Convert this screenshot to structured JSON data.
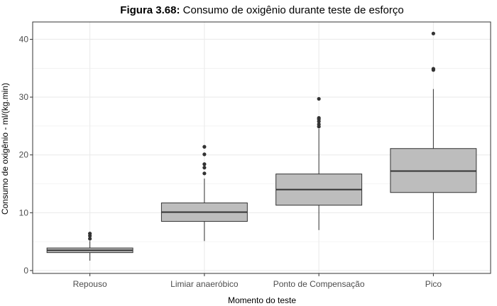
{
  "chart_data": {
    "type": "box",
    "title_prefix": "Figura 3.68:",
    "title_text": " Consumo de oxigênio durante teste de esforço",
    "xlabel": "Momento do teste",
    "ylabel": "Consumo de oxigênio - ml/(kg.min)",
    "ylim": [
      -0.5,
      43
    ],
    "yticks": [
      0,
      10,
      20,
      30,
      40
    ],
    "grid": true,
    "categories": [
      "Repouso",
      "Limiar anaeróbico",
      "Ponto de Compensação",
      "Pico"
    ],
    "boxes": [
      {
        "category": "Repouso",
        "whisker_low": 1.7,
        "q1": 3.1,
        "median": 3.5,
        "q3": 3.9,
        "whisker_high": 5.1,
        "outliers": [
          5.5,
          6.0,
          6.4
        ]
      },
      {
        "category": "Limiar anaeróbico",
        "whisker_low": 5.1,
        "q1": 8.5,
        "median": 10.1,
        "q3": 11.7,
        "whisker_high": 15.9,
        "outliers": [
          16.8,
          17.8,
          18.4,
          20.1,
          21.4
        ]
      },
      {
        "category": "Ponto de Compensação",
        "whisker_low": 7.0,
        "q1": 11.3,
        "median": 14.0,
        "q3": 16.7,
        "whisker_high": 24.5,
        "outliers": [
          24.9,
          25.3,
          25.8,
          26.2,
          26.4,
          29.7
        ]
      },
      {
        "category": "Pico",
        "whisker_low": 5.3,
        "q1": 13.5,
        "median": 17.2,
        "q3": 21.1,
        "whisker_high": 31.4,
        "outliers": [
          34.7,
          34.9,
          41.0
        ]
      }
    ],
    "colors": {
      "box_fill": "#bdbdbd",
      "box_stroke": "#333333",
      "grid": "#ebebeb",
      "panel_border": "#333333",
      "outlier": "#333333"
    }
  }
}
